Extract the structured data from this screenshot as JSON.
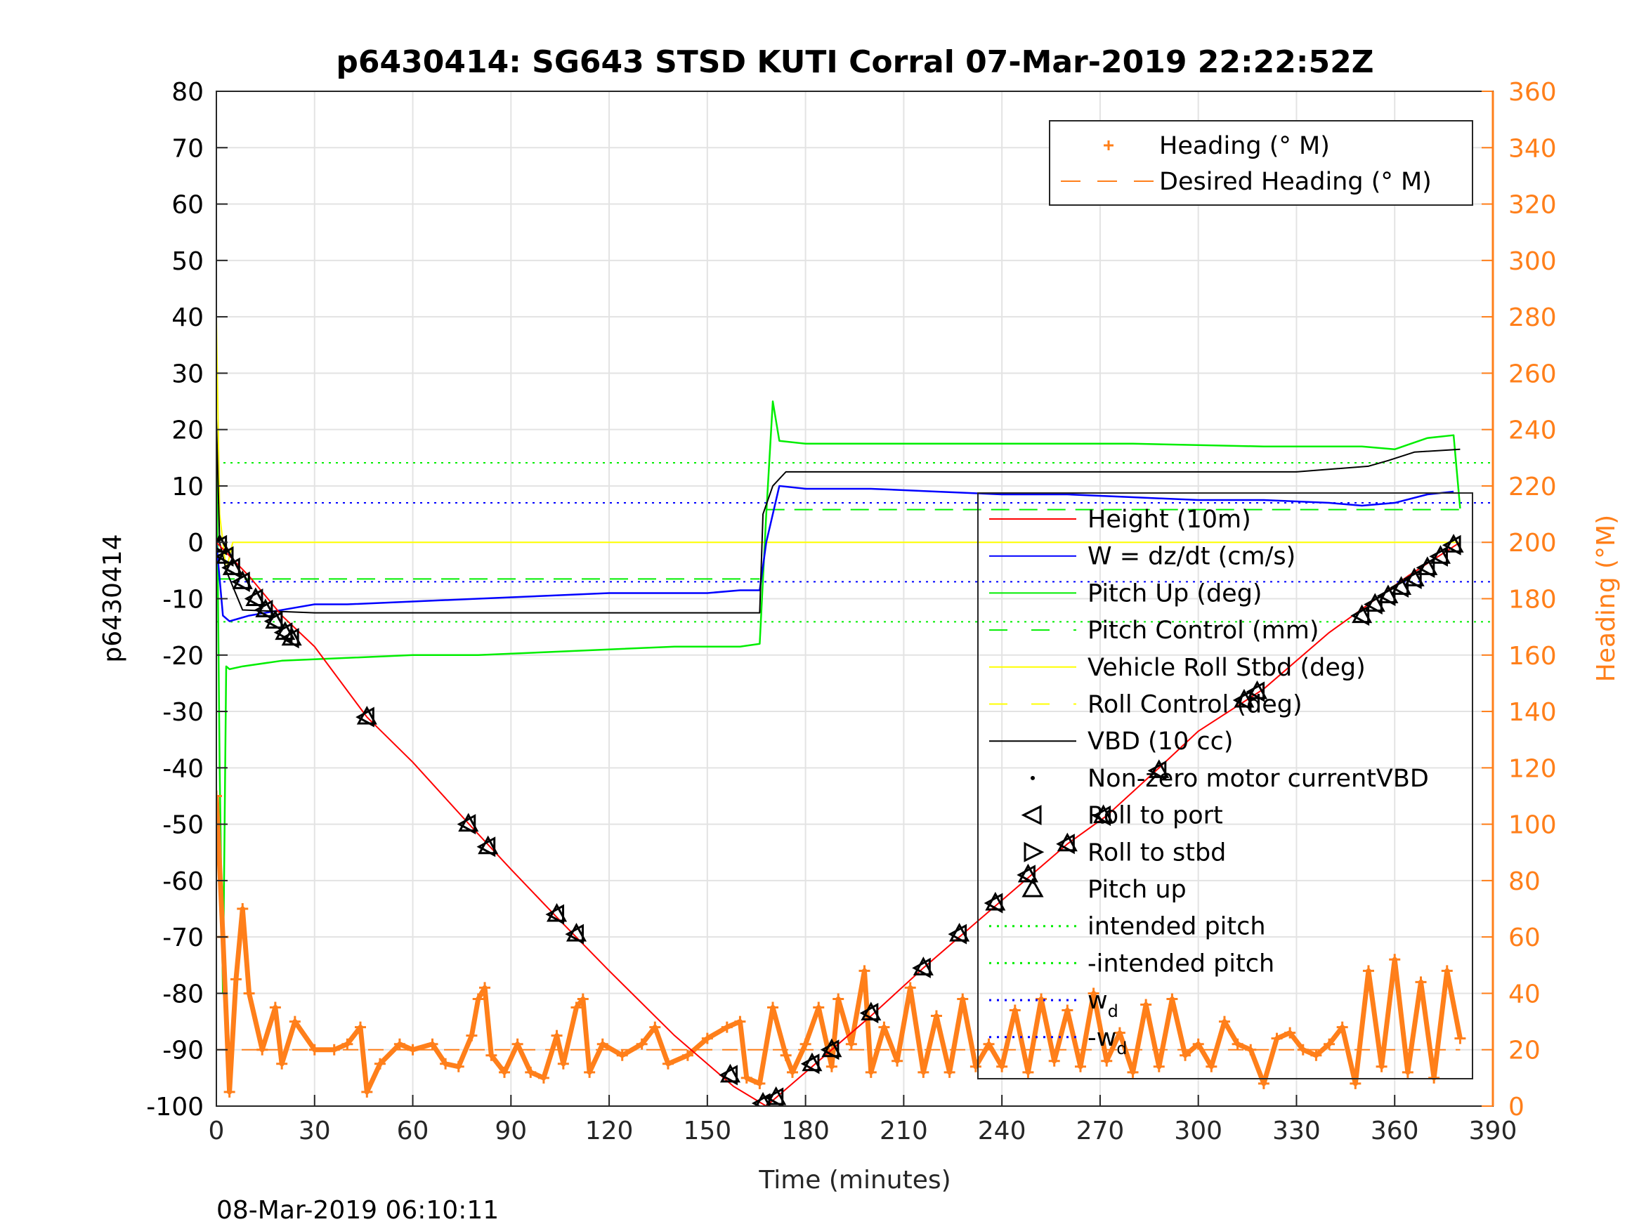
{
  "chart_data": {
    "type": "line",
    "title": "p6430414: SG643 STSD KUTI Corral 07-Mar-2019 22:22:52Z",
    "xlabel": "Time (minutes)",
    "ylabel_left": "p6430414",
    "ylabel_right": "Heading (°M)",
    "footer": "08-Mar-2019 06:10:11",
    "xlim": [
      0,
      390
    ],
    "ylim_left": [
      -100,
      80
    ],
    "ylim_right": [
      0,
      360
    ],
    "xticks": [
      0,
      30,
      60,
      90,
      120,
      150,
      180,
      210,
      240,
      270,
      300,
      330,
      360,
      390
    ],
    "yticks_left": [
      80,
      70,
      60,
      50,
      40,
      30,
      20,
      10,
      0,
      -10,
      -20,
      -30,
      -40,
      -50,
      -60,
      -70,
      -80,
      -90,
      -100
    ],
    "yticks_right": [
      360,
      340,
      320,
      300,
      280,
      260,
      240,
      220,
      200,
      180,
      160,
      140,
      120,
      100,
      80,
      60,
      40,
      20,
      0
    ],
    "grid": true,
    "colors": {
      "heading": "#ff7f1a",
      "height": "#ff0000",
      "w": "#0000ff",
      "pitch": "#00ee00",
      "roll": "#ffff00",
      "vbd": "#000000"
    },
    "legend_right_axis": [
      {
        "label": "Heading (° M)",
        "marker": "plus",
        "color": "#ff7f1a"
      },
      {
        "label": "Desired Heading (° M)",
        "marker": "dash",
        "color": "#ff7f1a"
      }
    ],
    "legend_left_axis": [
      {
        "label": "Height (10m)",
        "style": "solid",
        "color": "#ff0000"
      },
      {
        "label": "W = dz/dt (cm/s)",
        "style": "solid",
        "color": "#0000ff"
      },
      {
        "label": "Pitch Up (deg)",
        "style": "solid",
        "color": "#00ee00"
      },
      {
        "label": "Pitch Control (mm)",
        "style": "dash",
        "color": "#00ee00"
      },
      {
        "label": "Vehicle Roll Stbd (deg)",
        "style": "solid",
        "color": "#ffff00"
      },
      {
        "label": "Roll Control (deg)",
        "style": "dash",
        "color": "#ffff00"
      },
      {
        "label": "VBD (10 cc)",
        "style": "solid",
        "color": "#000000"
      },
      {
        "label": "Non-zero motor currentVBD",
        "style": "dot",
        "color": "#000000"
      },
      {
        "label": "Roll to port",
        "style": "tri-left",
        "color": "#000000"
      },
      {
        "label": "Roll to stbd",
        "style": "tri-right",
        "color": "#000000"
      },
      {
        "label": "Pitch up",
        "style": "tri-up",
        "color": "#000000"
      },
      {
        "label": "intended pitch",
        "style": "dotted",
        "color": "#00ee00"
      },
      {
        "label": "-intended pitch",
        "style": "dotted",
        "color": "#00ee00"
      },
      {
        "label": "w",
        "sub": "d",
        "style": "dotted",
        "color": "#0000ff"
      },
      {
        "label": "-w",
        "sub": "d",
        "style": "dotted",
        "color": "#0000ff"
      }
    ],
    "series": [
      {
        "name": "Height (10m)",
        "axis": "left",
        "x": [
          0,
          10,
          20,
          30,
          46,
          60,
          78,
          90,
          104,
          120,
          140,
          158,
          168,
          180,
          200,
          216,
          228,
          240,
          260,
          272,
          288,
          300,
          320,
          340,
          352,
          364,
          380
        ],
        "y": [
          0,
          -6,
          -13,
          -18.5,
          -31,
          -39,
          -50.5,
          -58,
          -66.5,
          -76,
          -87.5,
          -96.5,
          -100,
          -94,
          -84,
          -75.5,
          -69.5,
          -63.5,
          -53.5,
          -48.5,
          -40,
          -33.5,
          -26,
          -16,
          -11,
          -6,
          0
        ]
      },
      {
        "name": "W = dz/dt (cm/s)",
        "axis": "left",
        "x": [
          0,
          2,
          4,
          10,
          20,
          30,
          40,
          60,
          80,
          100,
          120,
          140,
          150,
          160,
          166,
          168,
          172,
          180,
          200,
          220,
          240,
          260,
          280,
          300,
          320,
          340,
          350,
          360,
          370,
          378
        ],
        "y": [
          0,
          -13,
          -14,
          -13,
          -12,
          -11,
          -11,
          -10.5,
          -10,
          -9.5,
          -9,
          -9,
          -9,
          -8.5,
          -8.5,
          0,
          10,
          9.5,
          9.5,
          9,
          8.5,
          8.5,
          8,
          7.5,
          7.5,
          7,
          6.5,
          7,
          8.5,
          9
        ]
      },
      {
        "name": "Pitch Up (deg)",
        "axis": "left",
        "x": [
          0,
          1,
          2,
          3,
          4,
          8,
          20,
          40,
          60,
          80,
          100,
          120,
          140,
          160,
          166,
          168,
          170,
          172,
          180,
          200,
          240,
          280,
          320,
          350,
          360,
          370,
          378,
          380
        ],
        "y": [
          20,
          -40,
          -80,
          -22,
          -22.5,
          -22,
          -21,
          -20.5,
          -20,
          -20,
          -19.5,
          -19,
          -18.5,
          -18.5,
          -18,
          5,
          25,
          18,
          17.5,
          17.5,
          17.5,
          17.5,
          17,
          17,
          16.5,
          18.5,
          19,
          6
        ]
      },
      {
        "name": "VBD (10 cc)",
        "axis": "left",
        "x": [
          0,
          1,
          3,
          8,
          30,
          60,
          100,
          150,
          166,
          167,
          170,
          174,
          200,
          240,
          280,
          330,
          352,
          358,
          366,
          380
        ],
        "y": [
          22,
          0,
          -5,
          -12,
          -12.5,
          -12.5,
          -12.5,
          -12.5,
          -12.5,
          5,
          10,
          12.5,
          12.5,
          12.5,
          12.5,
          12.5,
          13.5,
          14.5,
          16,
          16.5
        ]
      },
      {
        "name": "Vehicle Roll Stbd (deg)",
        "axis": "left",
        "x": [
          0,
          1,
          3,
          5,
          20,
          60,
          100,
          140,
          166,
          168,
          200,
          240,
          280,
          320,
          360,
          380
        ],
        "y": [
          40,
          5,
          -5,
          0,
          0,
          0,
          0,
          0,
          0,
          0,
          0,
          0,
          0,
          0,
          0,
          0
        ]
      },
      {
        "name": "Heading (° M)",
        "axis": "right",
        "x": [
          0,
          2,
          4,
          6,
          8,
          10,
          14,
          18,
          20,
          24,
          30,
          36,
          40,
          44,
          46,
          50,
          56,
          60,
          66,
          70,
          74,
          78,
          80,
          82,
          84,
          88,
          92,
          96,
          100,
          104,
          106,
          110,
          112,
          114,
          118,
          124,
          130,
          134,
          138,
          144,
          150,
          156,
          160,
          162,
          166,
          170,
          174,
          176,
          180,
          184,
          188,
          190,
          194,
          198,
          200,
          204,
          208,
          212,
          216,
          220,
          224,
          228,
          232,
          236,
          240,
          244,
          248,
          252,
          256,
          260,
          264,
          268,
          272,
          276,
          280,
          284,
          288,
          292,
          296,
          300,
          304,
          308,
          312,
          316,
          320,
          324,
          328,
          332,
          336,
          340,
          344,
          348,
          352,
          356,
          360,
          364,
          368,
          372,
          376,
          380
        ],
        "y": [
          110,
          60,
          5,
          45,
          70,
          40,
          20,
          35,
          15,
          30,
          20,
          20,
          22,
          28,
          5,
          15,
          22,
          20,
          22,
          15,
          14,
          25,
          38,
          42,
          18,
          12,
          22,
          12,
          10,
          25,
          15,
          35,
          38,
          12,
          22,
          18,
          22,
          28,
          15,
          18,
          24,
          28,
          30,
          10,
          8,
          35,
          18,
          12,
          22,
          35,
          14,
          38,
          22,
          48,
          12,
          28,
          16,
          42,
          12,
          32,
          12,
          38,
          14,
          22,
          14,
          34,
          12,
          38,
          16,
          34,
          14,
          40,
          16,
          26,
          12,
          36,
          14,
          38,
          18,
          22,
          14,
          30,
          22,
          20,
          8,
          24,
          26,
          20,
          18,
          22,
          28,
          8,
          48,
          14,
          52,
          12,
          44,
          10,
          48,
          24
        ]
      },
      {
        "name": "Desired Heading (° M)",
        "axis": "right",
        "x": [
          0,
          380
        ],
        "y": [
          20,
          20
        ]
      }
    ],
    "reference_lines": [
      {
        "name": "intended pitch",
        "axis": "left",
        "y": 14.1,
        "color": "#00ee00",
        "style": "dotted"
      },
      {
        "name": "-intended pitch",
        "axis": "left",
        "y": -14.1,
        "color": "#00ee00",
        "style": "dotted"
      },
      {
        "name": "w_d",
        "axis": "left",
        "y": 7,
        "color": "#0000ff",
        "style": "dotted"
      },
      {
        "name": "-w_d",
        "axis": "left",
        "y": -7,
        "color": "#0000ff",
        "style": "dotted"
      },
      {
        "name": "Pitch Control (mm)",
        "axis": "left",
        "y": -6.5,
        "x_range": [
          0,
          166
        ],
        "color": "#00ee00",
        "style": "dash"
      },
      {
        "name": "Pitch Control (mm)",
        "axis": "left",
        "y": 5.8,
        "x_range": [
          168,
          380
        ],
        "color": "#00ee00",
        "style": "dash"
      }
    ],
    "roll_markers": {
      "x": [
        1,
        3,
        5,
        8,
        12,
        15,
        18,
        21,
        23,
        46,
        77,
        83,
        104,
        110,
        157,
        167,
        171,
        182,
        188,
        200,
        216,
        227,
        238,
        248,
        260,
        271,
        288,
        314,
        318,
        350,
        354,
        358,
        362,
        366,
        370,
        374,
        378
      ],
      "y": [
        -0.5,
        -2.5,
        -4.5,
        -7,
        -10,
        -12,
        -14,
        -16,
        -17,
        -31,
        -50,
        -54,
        -66,
        -69.5,
        -94.5,
        -99.5,
        -98.5,
        -92.5,
        -90,
        -83.5,
        -75.5,
        -69.5,
        -64,
        -59,
        -53.5,
        -48.5,
        -40.5,
        -28,
        -26.5,
        -13,
        -11,
        -9.5,
        -8,
        -6.5,
        -4.5,
        -2.5,
        -0.5
      ]
    }
  }
}
